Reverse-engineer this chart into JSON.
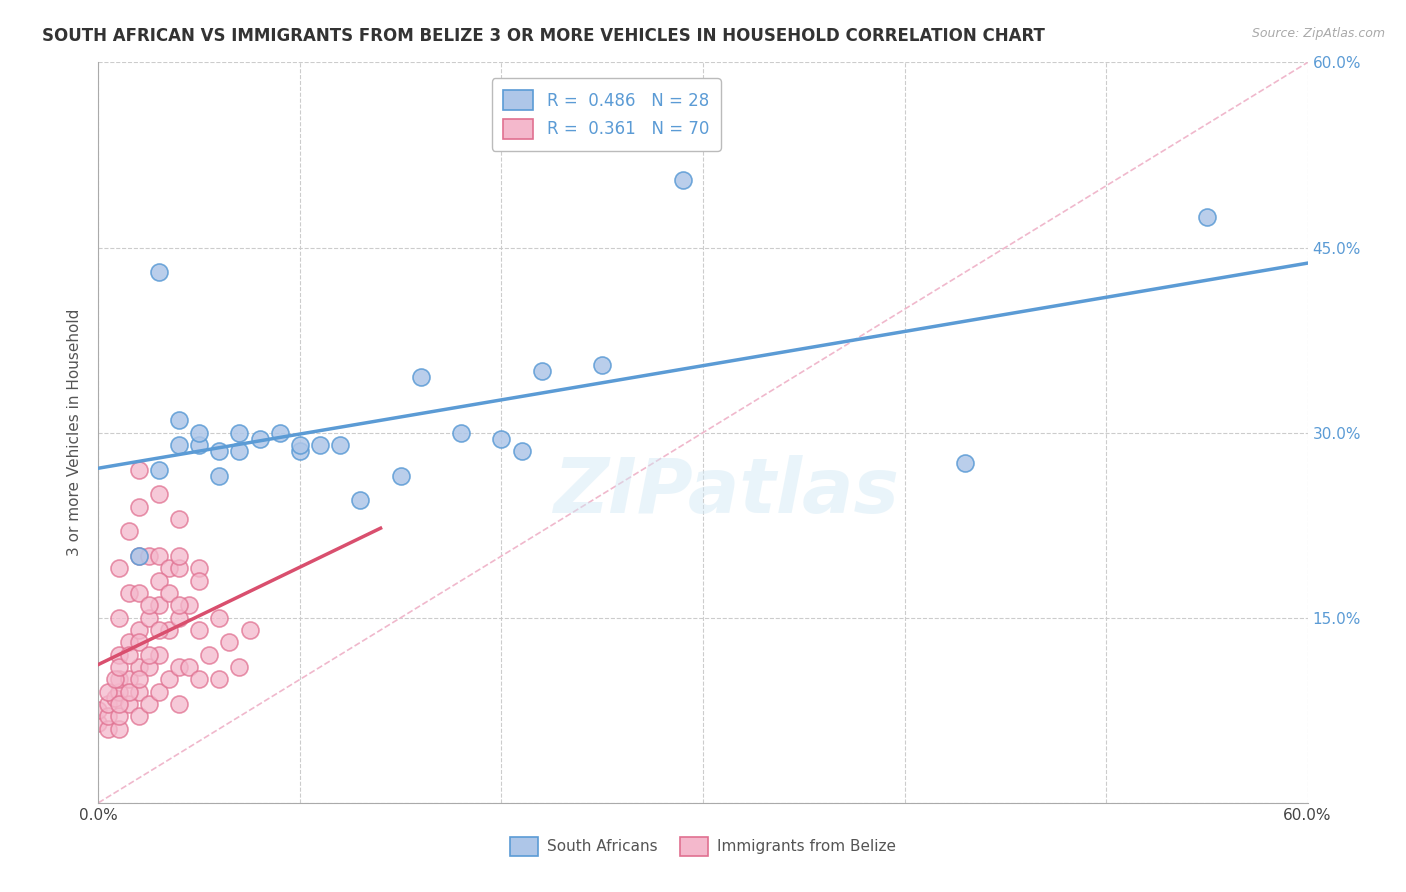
{
  "title": "SOUTH AFRICAN VS IMMIGRANTS FROM BELIZE 3 OR MORE VEHICLES IN HOUSEHOLD CORRELATION CHART",
  "source": "Source: ZipAtlas.com",
  "ylabel": "3 or more Vehicles in Household",
  "x_min": 0.0,
  "x_max": 0.6,
  "y_min": 0.0,
  "y_max": 0.6,
  "grid_color": "#cccccc",
  "background_color": "#ffffff",
  "title_fontsize": 13,
  "south_african_color": "#aec6e8",
  "south_african_edge": "#5b9bd5",
  "belize_color": "#f4b8cc",
  "belize_edge": "#e07090",
  "trend_sa_color": "#5b9bd5",
  "trend_belize_color": "#d94f6e",
  "diagonal_color": "#f0b8cc",
  "watermark": "ZIPatlas",
  "sa_x": [
    0.02,
    0.03,
    0.04,
    0.05,
    0.05,
    0.06,
    0.07,
    0.08,
    0.09,
    0.1,
    0.11,
    0.13,
    0.15,
    0.16,
    0.18,
    0.2,
    0.21,
    0.22,
    0.25,
    0.29,
    0.43,
    0.55,
    0.06,
    0.07,
    0.03,
    0.04,
    0.1,
    0.12
  ],
  "sa_y": [
    0.2,
    0.43,
    0.31,
    0.29,
    0.3,
    0.285,
    0.3,
    0.295,
    0.3,
    0.285,
    0.29,
    0.245,
    0.265,
    0.345,
    0.3,
    0.295,
    0.285,
    0.35,
    0.355,
    0.505,
    0.275,
    0.475,
    0.265,
    0.285,
    0.27,
    0.29,
    0.29,
    0.29
  ],
  "belize_x": [
    0.0,
    0.0,
    0.005,
    0.005,
    0.005,
    0.008,
    0.01,
    0.01,
    0.01,
    0.01,
    0.01,
    0.01,
    0.01,
    0.015,
    0.015,
    0.015,
    0.015,
    0.015,
    0.02,
    0.02,
    0.02,
    0.02,
    0.02,
    0.02,
    0.02,
    0.02,
    0.025,
    0.025,
    0.025,
    0.025,
    0.03,
    0.03,
    0.03,
    0.03,
    0.03,
    0.035,
    0.035,
    0.035,
    0.04,
    0.04,
    0.04,
    0.04,
    0.04,
    0.045,
    0.045,
    0.05,
    0.05,
    0.05,
    0.055,
    0.06,
    0.06,
    0.065,
    0.07,
    0.075,
    0.005,
    0.008,
    0.01,
    0.01,
    0.015,
    0.015,
    0.02,
    0.02,
    0.025,
    0.025,
    0.03,
    0.03,
    0.035,
    0.04,
    0.04,
    0.05
  ],
  "belize_y": [
    0.065,
    0.075,
    0.06,
    0.07,
    0.08,
    0.085,
    0.06,
    0.07,
    0.09,
    0.1,
    0.12,
    0.15,
    0.19,
    0.08,
    0.1,
    0.13,
    0.17,
    0.22,
    0.07,
    0.09,
    0.11,
    0.14,
    0.17,
    0.2,
    0.24,
    0.27,
    0.08,
    0.11,
    0.15,
    0.2,
    0.09,
    0.12,
    0.16,
    0.2,
    0.25,
    0.1,
    0.14,
    0.19,
    0.08,
    0.11,
    0.15,
    0.19,
    0.23,
    0.11,
    0.16,
    0.1,
    0.14,
    0.19,
    0.12,
    0.1,
    0.15,
    0.13,
    0.11,
    0.14,
    0.09,
    0.1,
    0.08,
    0.11,
    0.09,
    0.12,
    0.1,
    0.13,
    0.12,
    0.16,
    0.14,
    0.18,
    0.17,
    0.16,
    0.2,
    0.18
  ]
}
